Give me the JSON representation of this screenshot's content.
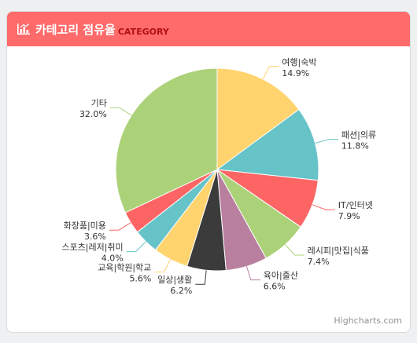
{
  "header": {
    "title": "카테고리 점유율",
    "subtitle": "CATEGORY",
    "icon": "bar-chart-icon"
  },
  "credits": "Highcharts.com",
  "colors": {
    "header_bg": "#ff6a6a",
    "subtitle": "#b30f0f"
  },
  "chart_data": {
    "type": "pie",
    "title": "",
    "slices": [
      {
        "name": "여행|숙박",
        "value": 14.9,
        "label": "14.9%",
        "color": "#ffd36e"
      },
      {
        "name": "패션|의류",
        "value": 11.8,
        "label": "11.8%",
        "color": "#66c3c8"
      },
      {
        "name": "IT/인터넷",
        "value": 7.9,
        "label": "7.9%",
        "color": "#fd6565"
      },
      {
        "name": "레시피|맛집|식품",
        "value": 7.4,
        "label": "7.4%",
        "color": "#acd279"
      },
      {
        "name": "육아|출산",
        "value": 6.6,
        "label": "6.6%",
        "color": "#b8809e"
      },
      {
        "name": "일상|생활",
        "value": 6.2,
        "label": "6.2%",
        "color": "#3b3b3b"
      },
      {
        "name": "교육|학원|학교",
        "value": 5.6,
        "label": "5.6%",
        "color": "#ffd36e"
      },
      {
        "name": "스포츠|레저|취미",
        "value": 4.0,
        "label": "4.0%",
        "color": "#66c3c8"
      },
      {
        "name": "화장품|미용",
        "value": 3.6,
        "label": "3.6%",
        "color": "#fd6565"
      },
      {
        "name": "기타",
        "value": 32.0,
        "label": "32.0%",
        "color": "#acd279"
      }
    ]
  }
}
